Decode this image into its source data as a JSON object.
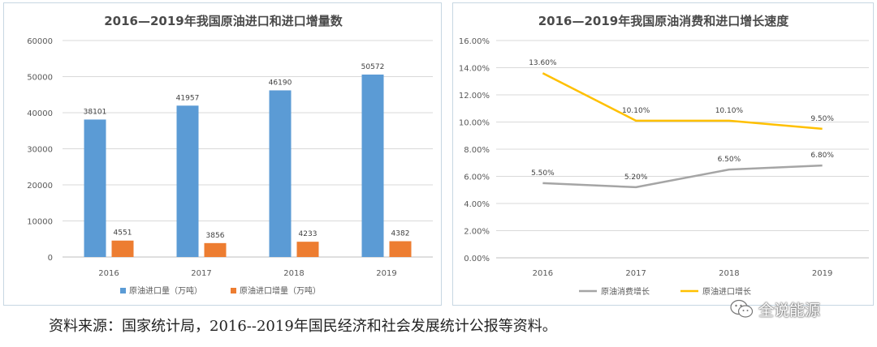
{
  "chart_data": [
    {
      "type": "bar",
      "title": "2016—2019年我国原油进口和进口增量数",
      "categories": [
        "2016",
        "2017",
        "2018",
        "2019"
      ],
      "series": [
        {
          "name": "原油进口量（万吨）",
          "color": "#5b9bd5",
          "values": [
            38101,
            41957,
            46190,
            50572
          ]
        },
        {
          "name": "原油进口增量（万吨）",
          "color": "#ed7d31",
          "values": [
            4551,
            3856,
            4233,
            4382
          ]
        }
      ],
      "ylim": [
        0,
        60000
      ],
      "yticks": [
        "0",
        "10000",
        "20000",
        "30000",
        "40000",
        "50000",
        "60000"
      ],
      "grid": true,
      "legend": "bottom"
    },
    {
      "type": "line",
      "title": "2016—2019年我国原油消费和进口增长速度",
      "categories": [
        "2016",
        "2017",
        "2018",
        "2019"
      ],
      "series": [
        {
          "name": "原油消费增长",
          "color": "#a5a5a5",
          "values": [
            5.5,
            5.2,
            6.5,
            6.8
          ],
          "labels": [
            "5.50%",
            "5.20%",
            "6.50%",
            "6.80%"
          ]
        },
        {
          "name": "原油进口增长",
          "color": "#ffc000",
          "values": [
            13.6,
            10.1,
            10.1,
            9.5
          ],
          "labels": [
            "13.60%",
            "10.10%",
            "10.10%",
            "9.50%"
          ]
        }
      ],
      "ylim": [
        0,
        16
      ],
      "yticks": [
        "0.00%",
        "2.00%",
        "4.00%",
        "6.00%",
        "8.00%",
        "10.00%",
        "12.00%",
        "14.00%",
        "16.00%"
      ],
      "grid": true,
      "legend": "bottom"
    }
  ],
  "footer": {
    "source": "资料来源：国家统计局，2016--2019年国民经济和社会发展统计公报等资料。",
    "watermark": "全说能源",
    "watermark_icon": "wechat-icon"
  }
}
